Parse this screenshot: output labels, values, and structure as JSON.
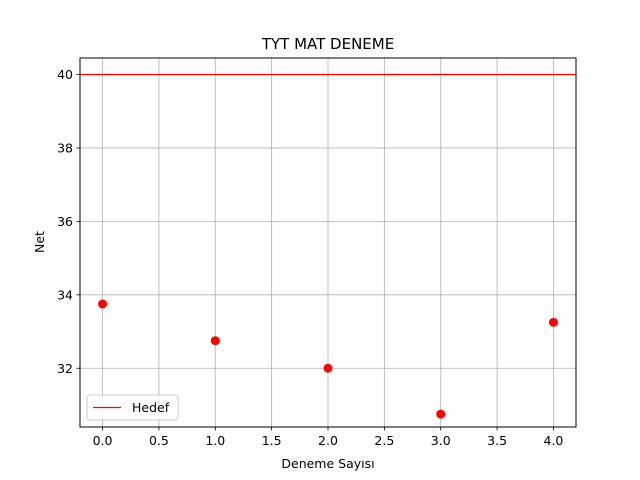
{
  "chart_data": {
    "type": "scatter",
    "title": "TYT MAT DENEME",
    "xlabel": "Deneme Sayısı",
    "ylabel": "Net",
    "xlim": [
      -0.2,
      4.2
    ],
    "ylim": [
      30.4,
      40.45
    ],
    "xticks": [
      "0.0",
      "0.5",
      "1.0",
      "1.5",
      "2.0",
      "2.5",
      "3.0",
      "3.5",
      "4.0"
    ],
    "yticks": [
      "32",
      "34",
      "36",
      "38",
      "40"
    ],
    "grid": true,
    "legend_position": "lower-left",
    "series": [
      {
        "kind": "points",
        "color": "#ff0000",
        "x": [
          0,
          1,
          2,
          3,
          4
        ],
        "y": [
          33.75,
          32.75,
          32.0,
          30.75,
          33.25
        ]
      },
      {
        "kind": "hline",
        "name": "Hedef",
        "color": "#ff0000",
        "y": 40
      }
    ]
  }
}
